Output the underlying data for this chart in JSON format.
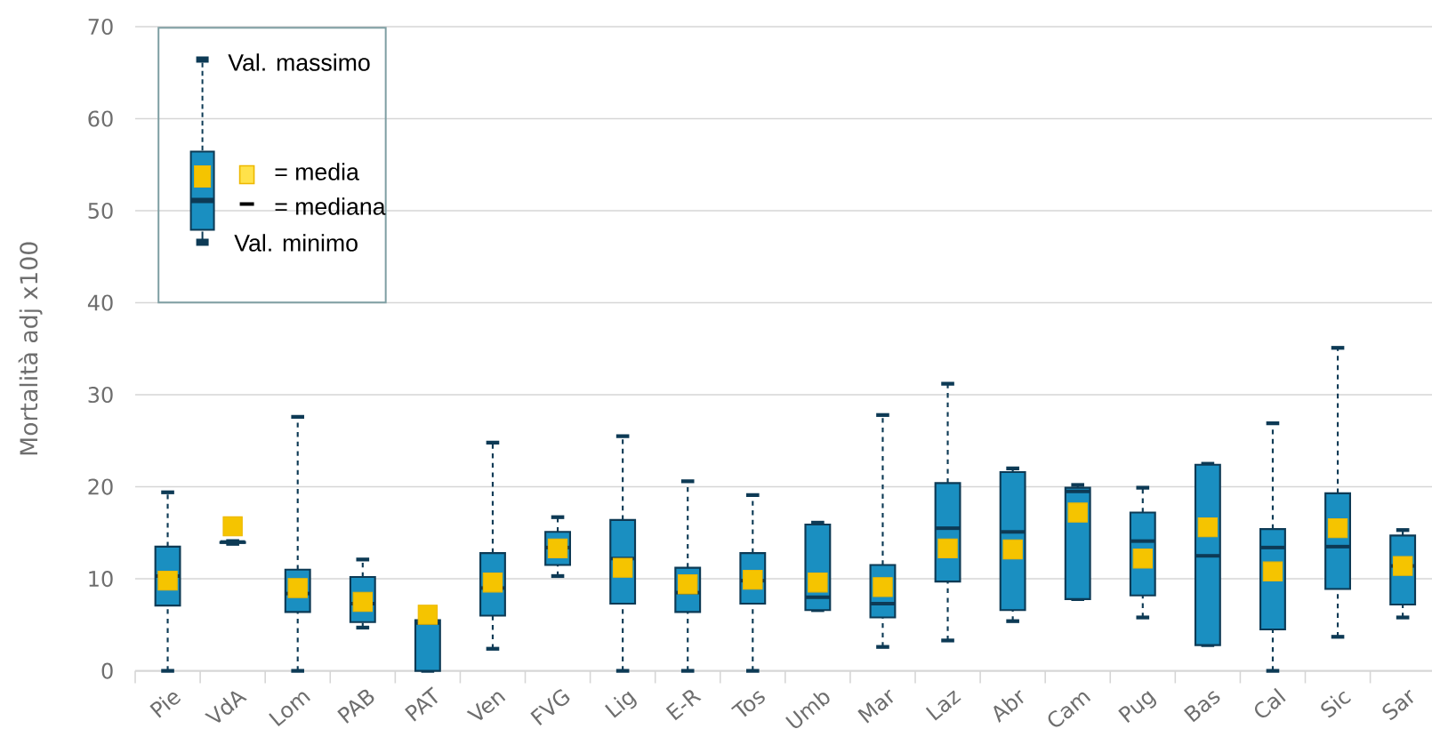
{
  "chart_data": {
    "type": "box",
    "ylabel": "Mortalità adj x100",
    "color": "#1a8fc1",
    "categories": [
      "Pie",
      "VdA",
      "Lom",
      "PAB",
      "PAT",
      "Ven",
      "FVG",
      "Lig",
      "E-R",
      "Tos",
      "Umb",
      "Mar",
      "Laz",
      "Abr",
      "Cam",
      "Pug",
      "Bas",
      "Cal",
      "Sic",
      "Sar"
    ],
    "boxes": [
      {
        "low": 0,
        "q1": 7.1,
        "median": 10.3,
        "q3": 13.5,
        "high": 19.4,
        "mean": 9.8
      },
      {
        "low": 13.8,
        "q1": 13.9,
        "median": 14,
        "q3": 14,
        "high": 14.1,
        "mean": 15.7
      },
      {
        "low": 0,
        "q1": 6.4,
        "median": 8.4,
        "q3": 11,
        "high": 27.6,
        "mean": 9
      },
      {
        "low": 4.7,
        "q1": 5.3,
        "median": 7.3,
        "q3": 10.2,
        "high": 12.1,
        "mean": 7.5
      },
      {
        "low": 0,
        "q1": 0,
        "median": 5.2,
        "q3": 5.5,
        "high": 5.5,
        "mean": 6.1
      },
      {
        "low": 2.4,
        "q1": 6,
        "median": 9,
        "q3": 12.8,
        "high": 24.8,
        "mean": 9.6
      },
      {
        "low": 10.3,
        "q1": 11.5,
        "median": 13.4,
        "q3": 15.1,
        "high": 16.7,
        "mean": 13.3
      },
      {
        "low": 0,
        "q1": 7.3,
        "median": 12.2,
        "q3": 16.4,
        "high": 25.5,
        "mean": 11.2
      },
      {
        "low": 0,
        "q1": 6.4,
        "median": 8.5,
        "q3": 11.2,
        "high": 20.6,
        "mean": 9.4
      },
      {
        "low": 0,
        "q1": 7.3,
        "median": 9.8,
        "q3": 12.8,
        "high": 19.1,
        "mean": 9.9
      },
      {
        "low": 6.6,
        "q1": 6.6,
        "median": 8,
        "q3": 15.9,
        "high": 16.1,
        "mean": 9.6
      },
      {
        "low": 2.6,
        "q1": 5.8,
        "median": 7.3,
        "q3": 11.5,
        "high": 27.8,
        "mean": 9.1
      },
      {
        "low": 3.3,
        "q1": 9.7,
        "median": 15.5,
        "q3": 20.4,
        "high": 31.2,
        "mean": 13.3
      },
      {
        "low": 5.4,
        "q1": 6.6,
        "median": 15.1,
        "q3": 21.6,
        "high": 22,
        "mean": 13.2
      },
      {
        "low": 7.8,
        "q1": 7.8,
        "median": 19.5,
        "q3": 19.9,
        "high": 20.2,
        "mean": 17.2
      },
      {
        "low": 5.8,
        "q1": 8.2,
        "median": 14.1,
        "q3": 17.2,
        "high": 19.9,
        "mean": 12.2
      },
      {
        "low": 2.8,
        "q1": 2.8,
        "median": 12.5,
        "q3": 22.4,
        "high": 22.5,
        "mean": 15.6
      },
      {
        "low": 0,
        "q1": 4.5,
        "median": 13.4,
        "q3": 15.4,
        "high": 26.9,
        "mean": 10.8
      },
      {
        "low": 3.7,
        "q1": 8.9,
        "median": 13.5,
        "q3": 19.3,
        "high": 35.1,
        "mean": 15.5
      },
      {
        "low": 5.8,
        "q1": 7.2,
        "median": 11.4,
        "q3": 14.7,
        "high": 15.3,
        "mean": 11.4
      }
    ],
    "ylim": [
      0,
      70
    ],
    "yticks": [
      0,
      10,
      20,
      30,
      40,
      50,
      60,
      70
    ],
    "grid": "y",
    "annotations": [
      "Val. massimo",
      "= media",
      "= mediana",
      "Val. minimo"
    ]
  }
}
